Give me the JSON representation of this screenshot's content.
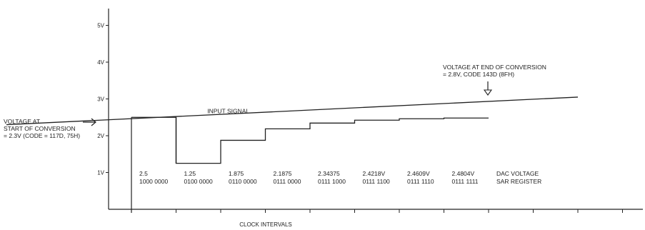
{
  "chart_data": {
    "type": "line",
    "title": "",
    "xlabel": "CLOCK INTERVALS",
    "ylabel": "",
    "ylim": [
      0,
      5.5
    ],
    "y_ticks": [
      {
        "value": 1,
        "label": "1V"
      },
      {
        "value": 2,
        "label": "2V"
      },
      {
        "value": 3,
        "label": "3V"
      },
      {
        "value": 4,
        "label": "4V"
      },
      {
        "value": 5,
        "label": "5V"
      }
    ],
    "x_ticks": [
      0,
      1,
      2,
      3,
      4,
      5,
      6,
      7,
      8,
      9,
      10,
      11
    ],
    "series": [
      {
        "name": "INPUT SIGNAL",
        "kind": "line",
        "points": [
          [
            -2.8,
            2.3
          ],
          [
            10,
            3.05
          ]
        ]
      },
      {
        "name": "DAC VOLTAGE",
        "kind": "step",
        "values": [
          2.5,
          1.25,
          1.875,
          2.1875,
          2.34375,
          2.4218,
          2.4609,
          2.4804
        ]
      }
    ],
    "step_labels": [
      {
        "dac": "2.5",
        "sar": "1000 0000"
      },
      {
        "dac": "1.25",
        "sar": "0100 0000"
      },
      {
        "dac": "1.875",
        "sar": "0110 0000"
      },
      {
        "dac": "2.1875",
        "sar": "0111 0000"
      },
      {
        "dac": "2.34375",
        "sar": "0111 1000"
      },
      {
        "dac": "2.4218V",
        "sar": "0111 1100"
      },
      {
        "dac": "2.4609V",
        "sar": "0111 1110"
      },
      {
        "dac": "2.4804V",
        "sar": "0111 1111"
      }
    ],
    "row_labels": {
      "dac": "DAC VOLTAGE",
      "sar": "SAR REGISTER"
    },
    "annotations": {
      "input_signal": "INPUT SIGNAL",
      "start_lines": [
        "VOLTAGE AT",
        "START OF CONVERSION",
        "= 2.3V (CODE = 117D, 75H)"
      ],
      "end_lines": [
        "VOLTAGE AT END OF CONVERSION",
        "= 2.8V, CODE 143D (8FH)"
      ]
    }
  }
}
